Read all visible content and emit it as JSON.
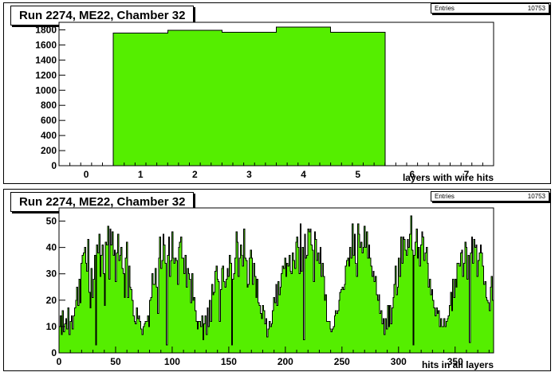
{
  "chart_data": [
    {
      "type": "bar",
      "title": "Run 2274, ME22, Chamber 32",
      "xlabel": "layers with wire hits",
      "ylabel": "",
      "stats": {
        "label": "Entries",
        "value": "10753"
      },
      "xlim": [
        -0.5,
        7.5
      ],
      "ylim": [
        0,
        1900
      ],
      "xticks": [
        0,
        1,
        2,
        3,
        4,
        5,
        6,
        7
      ],
      "yticks": [
        0,
        200,
        400,
        600,
        800,
        1000,
        1200,
        1400,
        1600,
        1800
      ],
      "categories": [
        0,
        1,
        2,
        3,
        4,
        5,
        6,
        7
      ],
      "values": [
        0,
        1760,
        1795,
        1770,
        1835,
        1770,
        0,
        0
      ],
      "colors": {
        "fill": "#55ee00",
        "line": "#000000"
      }
    },
    {
      "type": "bar",
      "title": "Run 2274, ME22, Chamber 32",
      "xlabel": "hits in all layers",
      "ylabel": "",
      "stats": {
        "label": "Entries",
        "value": "10753"
      },
      "xlim": [
        0,
        384
      ],
      "ylim": [
        0,
        55
      ],
      "xticks": [
        0,
        50,
        100,
        150,
        200,
        250,
        300,
        350
      ],
      "yticks": [
        0,
        10,
        20,
        30,
        40,
        50
      ],
      "values": [
        10,
        14,
        7,
        16,
        8,
        11,
        13,
        9,
        17,
        7,
        12,
        14,
        9,
        14,
        17,
        20,
        25,
        18,
        28,
        19,
        34,
        37,
        38,
        40,
        34,
        31,
        43,
        23,
        17,
        32,
        21,
        28,
        37,
        3,
        41,
        38,
        45,
        29,
        37,
        41,
        30,
        18,
        42,
        41,
        48,
        28,
        47,
        41,
        46,
        37,
        39,
        27,
        38,
        45,
        35,
        37,
        40,
        32,
        30,
        21,
        36,
        42,
        21,
        33,
        25,
        24,
        20,
        14,
        12,
        11,
        17,
        13,
        14,
        12,
        9,
        7,
        10,
        11,
        12,
        12,
        14,
        10,
        20,
        21,
        30,
        26,
        26,
        32,
        25,
        15,
        36,
        44,
        32,
        35,
        45,
        41,
        34,
        3,
        37,
        44,
        29,
        35,
        46,
        36,
        34,
        36,
        35,
        26,
        40,
        42,
        44,
        36,
        36,
        30,
        37,
        25,
        32,
        30,
        28,
        19,
        30,
        20,
        21,
        16,
        12,
        9,
        12,
        12,
        10,
        14,
        5,
        11,
        14,
        7,
        17,
        10,
        20,
        12,
        26,
        22,
        23,
        31,
        33,
        28,
        27,
        12,
        24,
        32,
        33,
        27,
        25,
        28,
        32,
        29,
        37,
        34,
        3,
        28,
        30,
        36,
        46,
        42,
        29,
        36,
        41,
        37,
        33,
        47,
        36,
        35,
        25,
        26,
        36,
        39,
        36,
        26,
        34,
        29,
        21,
        28,
        19,
        18,
        15,
        13,
        18,
        16,
        11,
        13,
        6,
        9,
        12,
        10,
        11,
        16,
        21,
        19,
        26,
        18,
        27,
        22,
        25,
        30,
        33,
        32,
        36,
        29,
        34,
        33,
        37,
        31,
        30,
        38,
        35,
        32,
        42,
        44,
        40,
        30,
        49,
        31,
        40,
        5,
        45,
        36,
        37,
        47,
        46,
        47,
        41,
        39,
        27,
        46,
        43,
        35,
        38,
        34,
        40,
        29,
        34,
        29,
        20,
        22,
        12,
        12,
        12,
        9,
        8,
        9,
        10,
        14,
        16,
        15,
        16,
        20,
        23,
        24,
        25,
        24,
        26,
        33,
        35,
        36,
        33,
        40,
        36,
        49,
        37,
        45,
        34,
        29,
        49,
        45,
        40,
        42,
        38,
        40,
        48,
        40,
        46,
        36,
        41,
        36,
        33,
        29,
        31,
        27,
        29,
        22,
        20,
        22,
        15,
        16,
        11,
        13,
        7,
        13,
        9,
        18,
        10,
        18,
        11,
        17,
        21,
        26,
        33,
        22,
        25,
        36,
        29,
        44,
        34,
        44,
        43,
        39,
        37,
        43,
        40,
        45,
        52,
        39,
        3,
        37,
        42,
        47,
        36,
        40,
        33,
        41,
        46,
        44,
        35,
        38,
        40,
        34,
        25,
        28,
        22,
        24,
        20,
        17,
        14,
        17,
        15,
        16,
        10,
        13,
        10,
        10,
        13,
        10,
        12,
        13,
        14,
        18,
        23,
        16,
        28,
        21,
        28,
        25,
        34,
        34,
        33,
        38,
        39,
        29,
        34,
        42,
        40,
        28,
        37,
        4,
        38,
        44,
        34,
        43,
        40,
        41,
        29,
        35,
        38,
        41,
        38,
        33,
        26,
        27,
        21,
        20,
        19,
        16,
        25,
        29,
        20
      ],
      "colors": {
        "fill": "#55ee00",
        "line": "#000000"
      }
    }
  ]
}
